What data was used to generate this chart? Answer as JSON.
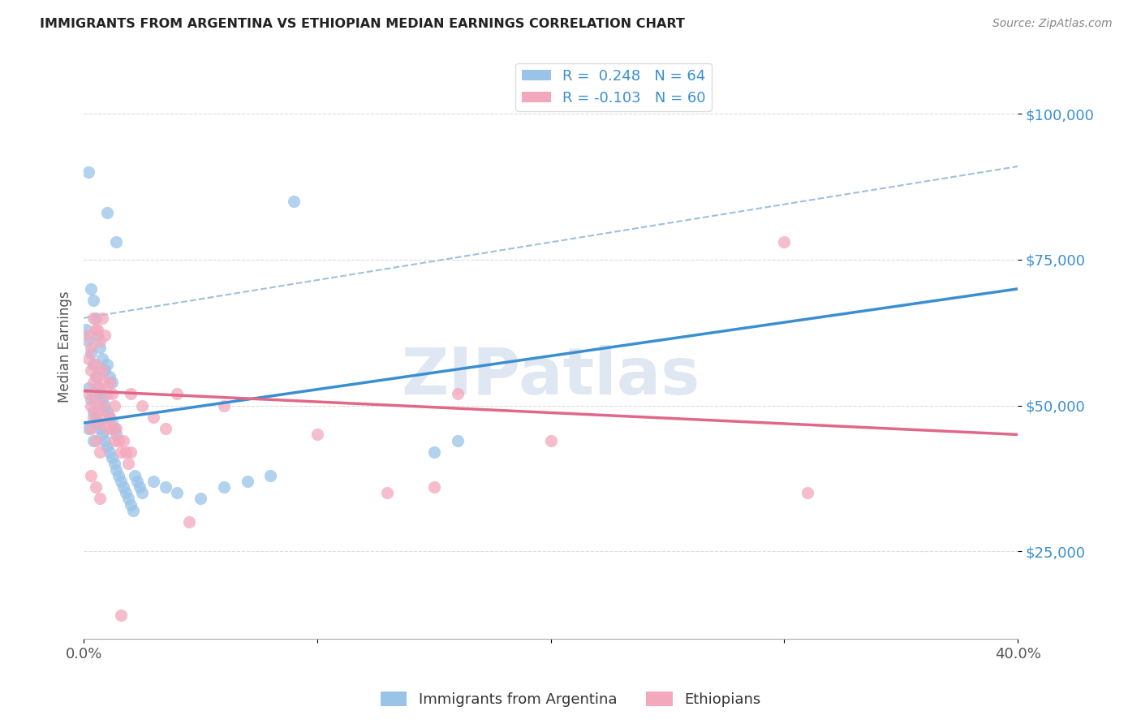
{
  "title": "IMMIGRANTS FROM ARGENTINA VS ETHIOPIAN MEDIAN EARNINGS CORRELATION CHART",
  "source": "Source: ZipAtlas.com",
  "ylabel": "Median Earnings",
  "y_ticks": [
    25000,
    50000,
    75000,
    100000
  ],
  "y_tick_labels": [
    "$25,000",
    "$50,000",
    "$75,000",
    "$100,000"
  ],
  "xlim": [
    0.0,
    0.4
  ],
  "ylim": [
    10000,
    110000
  ],
  "color_argentina": "#99c4e8",
  "color_ethiopians": "#f4a8bc",
  "color_line_argentina": "#3a8fd0",
  "color_line_ethiopians": "#e06888",
  "color_line_dashed": "#a0c0e0",
  "watermark": "ZIPatlas",
  "watermark_color": "#c8d8ea",
  "arg_line_x0": 0.0,
  "arg_line_y0": 47000,
  "arg_line_x1": 0.4,
  "arg_line_y1": 70000,
  "eth_line_x0": 0.0,
  "eth_line_y0": 52500,
  "eth_line_x1": 0.4,
  "eth_line_y1": 45000,
  "dash_line_x0": 0.0,
  "dash_line_y0": 65000,
  "dash_line_x1": 0.4,
  "dash_line_y1": 91000,
  "argentina_points": [
    [
      0.002,
      90000
    ],
    [
      0.01,
      83000
    ],
    [
      0.014,
      78000
    ],
    [
      0.09,
      85000
    ],
    [
      0.003,
      70000
    ],
    [
      0.004,
      68000
    ],
    [
      0.005,
      65000
    ],
    [
      0.006,
      62000
    ],
    [
      0.007,
      60000
    ],
    [
      0.008,
      58000
    ],
    [
      0.009,
      56000
    ],
    [
      0.01,
      57000
    ],
    [
      0.011,
      55000
    ],
    [
      0.012,
      54000
    ],
    [
      0.001,
      63000
    ],
    [
      0.002,
      61000
    ],
    [
      0.003,
      59000
    ],
    [
      0.004,
      57000
    ],
    [
      0.005,
      55000
    ],
    [
      0.006,
      53000
    ],
    [
      0.007,
      52000
    ],
    [
      0.008,
      51000
    ],
    [
      0.009,
      50000
    ],
    [
      0.01,
      49000
    ],
    [
      0.011,
      48000
    ],
    [
      0.012,
      47000
    ],
    [
      0.013,
      46000
    ],
    [
      0.014,
      45000
    ],
    [
      0.002,
      53000
    ],
    [
      0.003,
      51000
    ],
    [
      0.004,
      49000
    ],
    [
      0.005,
      48000
    ],
    [
      0.006,
      47000
    ],
    [
      0.007,
      46000
    ],
    [
      0.008,
      45000
    ],
    [
      0.009,
      44000
    ],
    [
      0.01,
      43000
    ],
    [
      0.011,
      42000
    ],
    [
      0.012,
      41000
    ],
    [
      0.013,
      40000
    ],
    [
      0.014,
      39000
    ],
    [
      0.015,
      38000
    ],
    [
      0.016,
      37000
    ],
    [
      0.017,
      36000
    ],
    [
      0.018,
      35000
    ],
    [
      0.019,
      34000
    ],
    [
      0.02,
      33000
    ],
    [
      0.021,
      32000
    ],
    [
      0.022,
      38000
    ],
    [
      0.023,
      37000
    ],
    [
      0.024,
      36000
    ],
    [
      0.025,
      35000
    ],
    [
      0.03,
      37000
    ],
    [
      0.035,
      36000
    ],
    [
      0.04,
      35000
    ],
    [
      0.05,
      34000
    ],
    [
      0.06,
      36000
    ],
    [
      0.07,
      37000
    ],
    [
      0.08,
      38000
    ],
    [
      0.15,
      42000
    ],
    [
      0.16,
      44000
    ],
    [
      0.002,
      46000
    ],
    [
      0.004,
      44000
    ]
  ],
  "ethiopian_points": [
    [
      0.002,
      62000
    ],
    [
      0.004,
      65000
    ],
    [
      0.006,
      63000
    ],
    [
      0.007,
      61000
    ],
    [
      0.008,
      65000
    ],
    [
      0.009,
      62000
    ],
    [
      0.003,
      60000
    ],
    [
      0.005,
      63000
    ],
    [
      0.002,
      58000
    ],
    [
      0.003,
      56000
    ],
    [
      0.004,
      54000
    ],
    [
      0.005,
      57000
    ],
    [
      0.006,
      55000
    ],
    [
      0.007,
      53000
    ],
    [
      0.008,
      56000
    ],
    [
      0.009,
      54000
    ],
    [
      0.01,
      52000
    ],
    [
      0.011,
      54000
    ],
    [
      0.012,
      52000
    ],
    [
      0.013,
      50000
    ],
    [
      0.002,
      52000
    ],
    [
      0.003,
      50000
    ],
    [
      0.004,
      48000
    ],
    [
      0.005,
      51000
    ],
    [
      0.006,
      49000
    ],
    [
      0.007,
      47000
    ],
    [
      0.008,
      50000
    ],
    [
      0.009,
      48000
    ],
    [
      0.01,
      46000
    ],
    [
      0.011,
      48000
    ],
    [
      0.012,
      46000
    ],
    [
      0.013,
      44000
    ],
    [
      0.014,
      46000
    ],
    [
      0.015,
      44000
    ],
    [
      0.016,
      42000
    ],
    [
      0.017,
      44000
    ],
    [
      0.018,
      42000
    ],
    [
      0.019,
      40000
    ],
    [
      0.02,
      42000
    ],
    [
      0.003,
      46000
    ],
    [
      0.005,
      44000
    ],
    [
      0.007,
      42000
    ],
    [
      0.02,
      52000
    ],
    [
      0.025,
      50000
    ],
    [
      0.03,
      48000
    ],
    [
      0.035,
      46000
    ],
    [
      0.04,
      52000
    ],
    [
      0.06,
      50000
    ],
    [
      0.1,
      45000
    ],
    [
      0.16,
      52000
    ],
    [
      0.3,
      78000
    ],
    [
      0.31,
      35000
    ],
    [
      0.016,
      14000
    ],
    [
      0.045,
      30000
    ],
    [
      0.13,
      35000
    ],
    [
      0.2,
      44000
    ],
    [
      0.15,
      36000
    ],
    [
      0.003,
      38000
    ],
    [
      0.005,
      36000
    ],
    [
      0.007,
      34000
    ]
  ]
}
